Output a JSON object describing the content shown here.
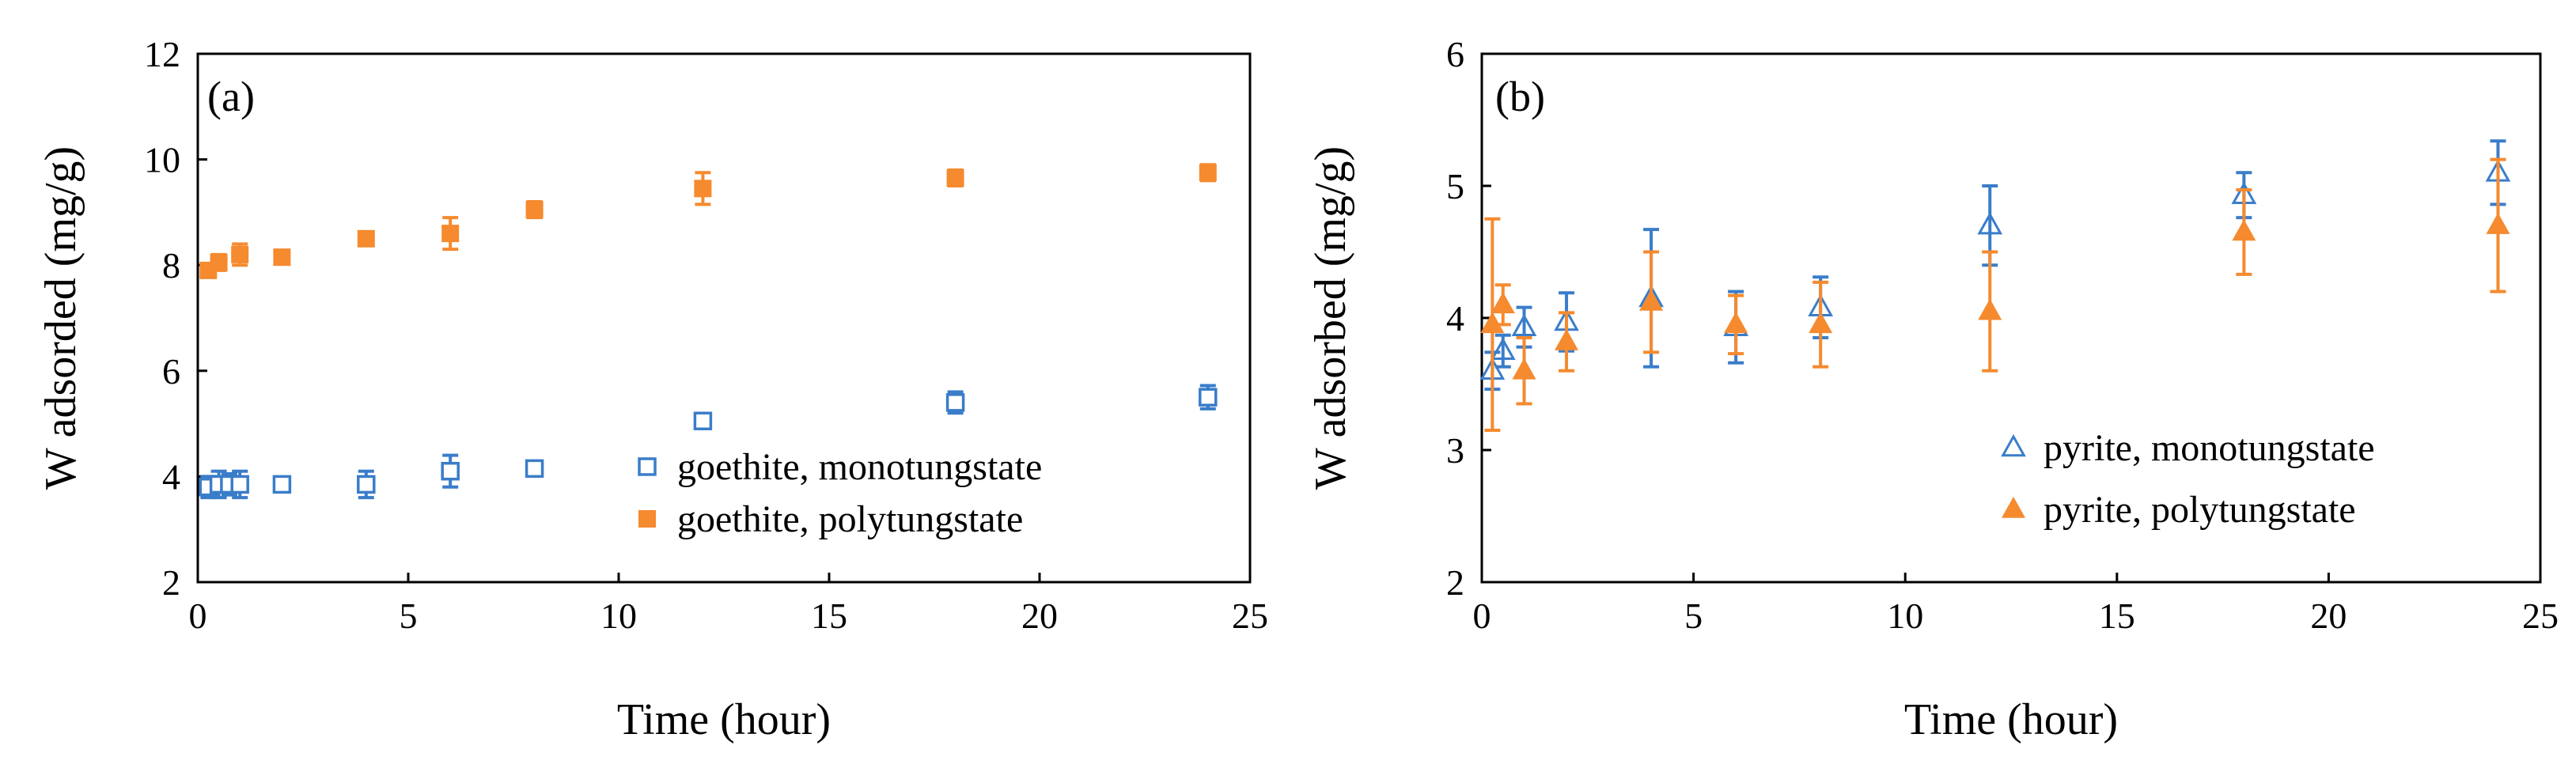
{
  "colors": {
    "blue": "#3A7DC9",
    "orange": "#F58A2E"
  },
  "chart_data": [
    {
      "type": "scatter",
      "panel_label": "(a)",
      "xlabel": "Time (hour)",
      "ylabel": "W adsorded (mg/g)",
      "xlim": [
        0,
        25
      ],
      "ylim": [
        2,
        12
      ],
      "xticks": [
        "0",
        "5",
        "10",
        "15",
        "20",
        "25"
      ],
      "yticks": [
        "2",
        "4",
        "6",
        "8",
        "10",
        "12"
      ],
      "legend_position": "bottom-right",
      "series": [
        {
          "name": "goethite, monotungstate",
          "marker": "square-open",
          "color": "#3A7DC9",
          "x": [
            0.25,
            0.5,
            0.75,
            1,
            2,
            4,
            6,
            8,
            12,
            18,
            24
          ],
          "y": [
            3.8,
            3.85,
            3.85,
            3.85,
            3.85,
            3.85,
            4.1,
            4.15,
            5.05,
            5.4,
            5.5
          ],
          "err": [
            0.2,
            0.25,
            0.2,
            0.25,
            0.1,
            0.25,
            0.3,
            0.12,
            0.1,
            0.2,
            0.22
          ]
        },
        {
          "name": "goethite, polytungstate",
          "marker": "square-filled",
          "color": "#F58A2E",
          "x": [
            0.25,
            0.5,
            1,
            2,
            4,
            6,
            8,
            12,
            18,
            24
          ],
          "y": [
            7.9,
            8.05,
            8.2,
            8.15,
            8.5,
            8.6,
            9.05,
            9.45,
            9.65,
            9.75
          ],
          "err": [
            0.1,
            0.15,
            0.2,
            0.1,
            0.1,
            0.3,
            0.15,
            0.3,
            0.15,
            0.15
          ]
        }
      ]
    },
    {
      "type": "scatter",
      "panel_label": "(b)",
      "xlabel": "Time (hour)",
      "ylabel": "W adsorbed (mg/g)",
      "xlim": [
        0,
        25
      ],
      "ylim": [
        2,
        6
      ],
      "xticks": [
        "0",
        "5",
        "10",
        "15",
        "20",
        "25"
      ],
      "yticks": [
        "2",
        "3",
        "4",
        "5",
        "6"
      ],
      "legend_position": "bottom-right",
      "series": [
        {
          "name": "pyrite, monotungstate",
          "marker": "triangle-open",
          "color": "#3A7DC9",
          "x": [
            0.25,
            0.5,
            1,
            2,
            4,
            6,
            8,
            12,
            18,
            24
          ],
          "y": [
            3.6,
            3.75,
            3.93,
            3.97,
            4.15,
            3.93,
            4.08,
            4.7,
            4.93,
            5.1
          ],
          "err": [
            0.14,
            0.12,
            0.15,
            0.22,
            0.52,
            0.27,
            0.23,
            0.3,
            0.17,
            0.24
          ]
        },
        {
          "name": "pyrite, polytungstate",
          "marker": "triangle-filled",
          "color": "#F58A2E",
          "x": [
            0.25,
            0.5,
            1,
            2,
            4,
            6,
            8,
            12,
            18,
            24
          ],
          "y": [
            3.95,
            4.1,
            3.6,
            3.82,
            4.12,
            3.95,
            3.95,
            4.05,
            4.65,
            4.7
          ],
          "err": [
            0.8,
            0.15,
            0.25,
            0.22,
            0.38,
            0.22,
            0.32,
            0.45,
            0.32,
            0.5
          ]
        }
      ]
    }
  ]
}
